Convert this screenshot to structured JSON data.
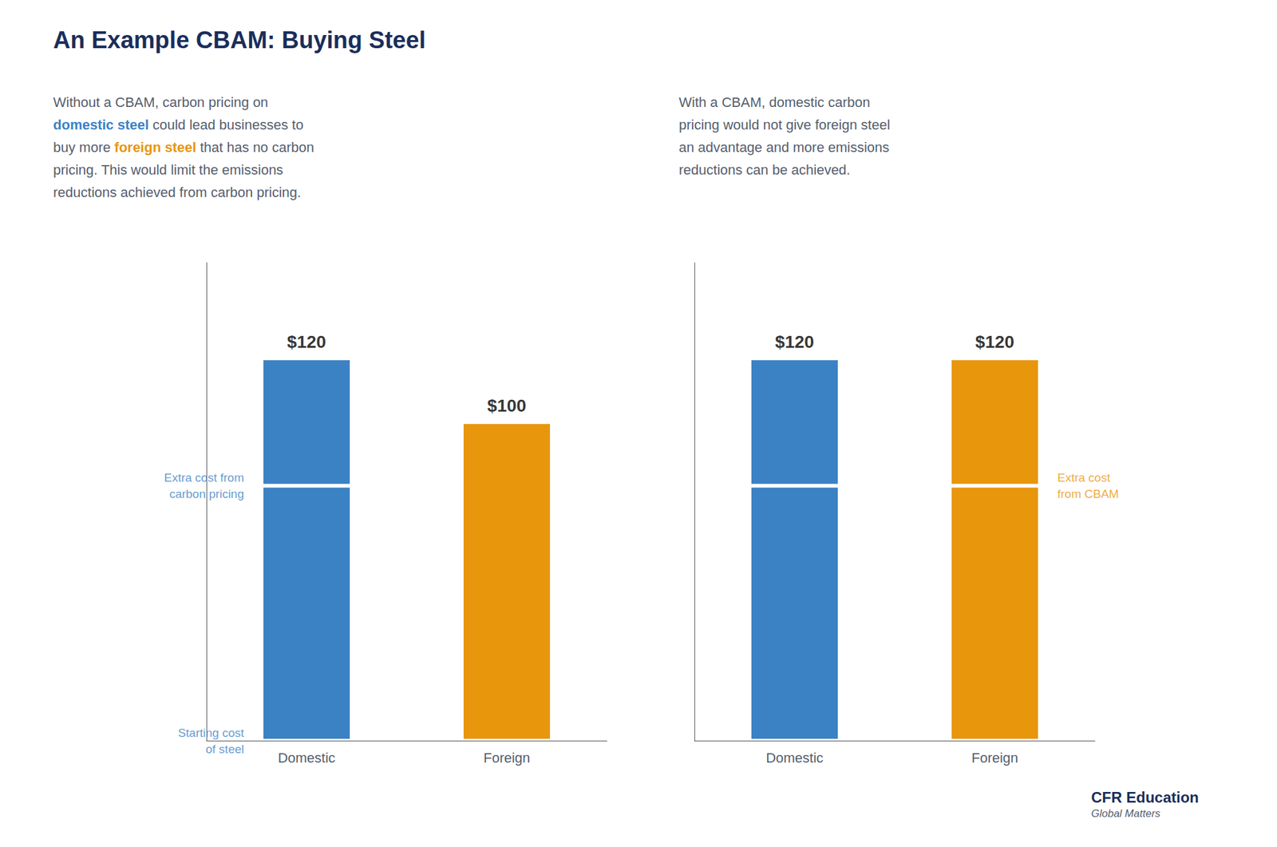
{
  "chart_data": [
    {
      "type": "bar",
      "title": "An Example CBAM: Buying Steel",
      "subtitle": [
        [
          {
            "text": "Without a CBAM, carbon pricing on"
          }
        ],
        [
          {
            "text": "domestic steel",
            "color": "#3b82c4"
          },
          {
            "text": " could lead businesses to"
          }
        ],
        [
          {
            "text": "buy more "
          },
          {
            "text": "foreign steel",
            "color": "#e8960c"
          },
          {
            "text": " that has no carbon"
          }
        ],
        [
          {
            "text": "pricing. This would limit the emissions"
          }
        ],
        [
          {
            "text": "reductions achieved from carbon pricing."
          }
        ]
      ],
      "categories": [
        "Domestic",
        "Foreign"
      ],
      "stacked": true,
      "series": [
        {
          "colors": [
            "#3b82c4",
            "#e8960c"
          ],
          "values": [
            80,
            100
          ]
        },
        {
          "colors": [
            "#3b82c4",
            "#e8960c"
          ],
          "values": [
            40,
            null
          ]
        }
      ],
      "totals": [
        120,
        100
      ],
      "total_labels": [
        "$120",
        "$100"
      ],
      "annotations": [
        {
          "text": "Extra cost from\ncarbon pricing",
          "x": "Domestic",
          "y": 80,
          "color": "#3b82c4"
        },
        {
          "text": "Starting cost\nof steel",
          "x": "Domestic",
          "y": 0,
          "color": "#3b82c4"
        }
      ],
      "ylim": [
        0,
        150
      ],
      "tick_labels": "x",
      "grid": false
    },
    {
      "type": "bar",
      "subtitle": [
        [
          {
            "text": "With a CBAM, domestic carbon"
          }
        ],
        [
          {
            "text": "pricing would not give foreign steel"
          }
        ],
        [
          {
            "text": "an advantage and more emissions"
          }
        ],
        [
          {
            "text": "reductions can be achieved."
          }
        ]
      ],
      "categories": [
        "Domestic",
        "Foreign"
      ],
      "stacked": true,
      "series": [
        {
          "colors": [
            "#3b82c4",
            "#e8960c"
          ],
          "values": [
            80,
            80
          ]
        },
        {
          "colors": [
            "#3b82c4",
            "#e8960c"
          ],
          "values": [
            40,
            40
          ]
        }
      ],
      "totals": [
        120,
        120
      ],
      "total_labels": [
        "$120",
        "$120"
      ],
      "annotations": [
        {
          "text": "Extra cost\nfrom CBAM",
          "x": "Foreign",
          "y": 80,
          "color": "#e8960c"
        }
      ],
      "ylim": [
        0,
        150
      ],
      "tick_labels": "x",
      "grid": false,
      "footer": [
        "CFR Education",
        "Global Matters"
      ]
    }
  ]
}
